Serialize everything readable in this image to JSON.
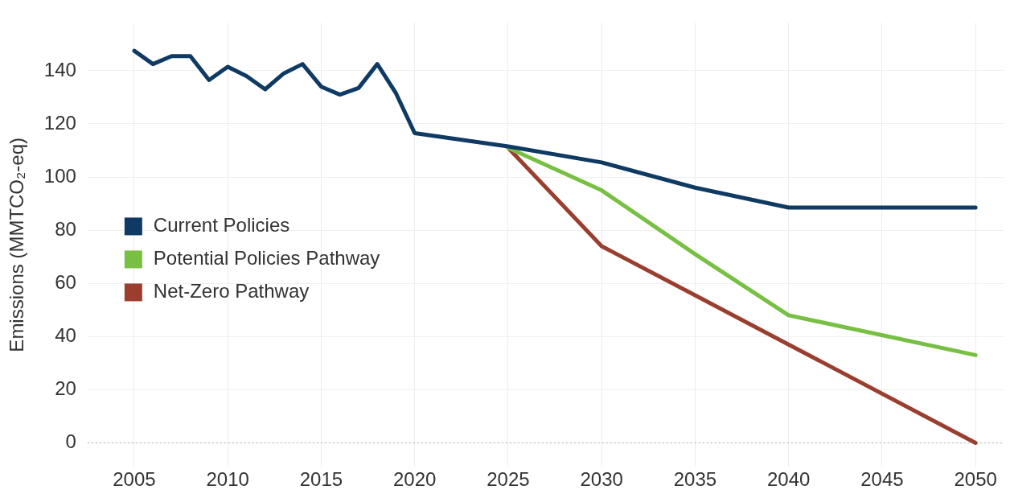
{
  "chart_data": {
    "type": "line",
    "ylabel": "Emissions (MMTCO₂-eq)",
    "xlim": [
      2002.5,
      2051.5
    ],
    "xticks": [
      2005,
      2010,
      2015,
      2020,
      2025,
      2030,
      2035,
      2040,
      2045,
      2050
    ],
    "ylim": [
      -9,
      158
    ],
    "yticks": [
      0,
      20,
      40,
      60,
      80,
      100,
      120,
      140
    ],
    "grid": true,
    "legend": "center left",
    "marker": "none",
    "line_style": "solid",
    "ref_lines": [
      {
        "axis": "y",
        "value": 0,
        "color": "#c8c8c8",
        "line_style": "dotted"
      }
    ],
    "series": [
      {
        "name": "Current Policies",
        "color": "#0e3a63",
        "x": [
          2005,
          2006,
          2007,
          2008,
          2009,
          2010,
          2011,
          2012,
          2013,
          2014,
          2015,
          2016,
          2017,
          2018,
          2019,
          2020,
          2025,
          2030,
          2035,
          2040,
          2050
        ],
        "values": [
          147.5,
          142.5,
          145.5,
          145.5,
          136.5,
          141.5,
          138,
          133,
          139,
          142.5,
          134,
          131,
          133.5,
          142.5,
          131.5,
          116.5,
          111.5,
          105.5,
          96,
          88.5,
          88.5
        ]
      },
      {
        "name": "Potential Policies Pathway",
        "color": "#77c043",
        "x": [
          2025,
          2030,
          2035,
          2040,
          2050
        ],
        "values": [
          111,
          95,
          71,
          48,
          33
        ]
      },
      {
        "name": "Net-Zero Pathway",
        "color": "#9a3f2f",
        "x": [
          2025,
          2030,
          2035,
          2040,
          2050
        ],
        "values": [
          111,
          74,
          55.5,
          37,
          0
        ]
      }
    ]
  }
}
